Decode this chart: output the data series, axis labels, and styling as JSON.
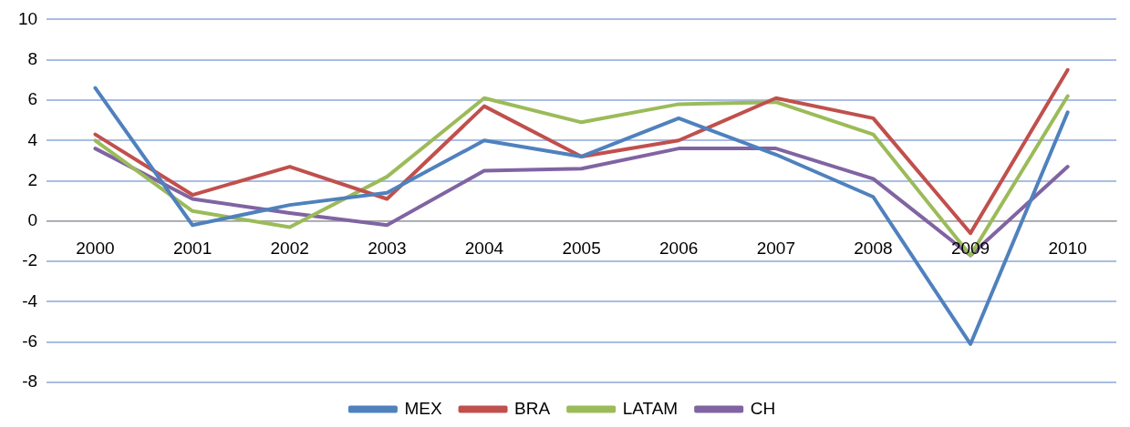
{
  "chart_data": {
    "type": "line",
    "categories": [
      "2000",
      "2001",
      "2002",
      "2003",
      "2004",
      "2005",
      "2006",
      "2007",
      "2008",
      "2009",
      "2010"
    ],
    "series": [
      {
        "name": "MEX",
        "color": "#4f81bd",
        "values": [
          6.6,
          -0.2,
          0.8,
          1.4,
          4.0,
          3.2,
          5.1,
          3.3,
          1.2,
          -6.1,
          5.4
        ]
      },
      {
        "name": "BRA",
        "color": "#c0504d",
        "values": [
          4.3,
          1.3,
          2.7,
          1.1,
          5.7,
          3.2,
          4.0,
          6.1,
          5.1,
          -0.6,
          7.5
        ]
      },
      {
        "name": "LATAM",
        "color": "#9bbb59",
        "values": [
          4.0,
          0.5,
          -0.3,
          2.2,
          6.1,
          4.9,
          5.8,
          5.9,
          4.3,
          -1.7,
          6.2
        ]
      },
      {
        "name": "CH",
        "color": "#8064a2",
        "values": [
          3.6,
          1.1,
          0.4,
          -0.2,
          2.5,
          2.6,
          3.6,
          3.6,
          2.1,
          -1.7,
          2.7
        ]
      }
    ],
    "ylim": [
      -8,
      10
    ],
    "yticks": [
      -8,
      -6,
      -4,
      -2,
      0,
      2,
      4,
      6,
      8,
      10
    ],
    "grid": "y",
    "legend": "bottom",
    "marker": "none",
    "line_style": "solid"
  }
}
